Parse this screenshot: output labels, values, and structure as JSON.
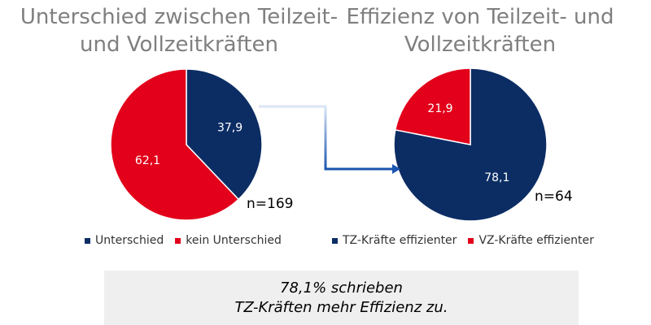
{
  "colors": {
    "navy": "#0c2d64",
    "red": "#e2001a",
    "title_gray": "#7f7f7f",
    "callout_bg": "#efefef"
  },
  "chart_data": [
    {
      "type": "pie",
      "title": "Unterschied zwischen Teilzeit- und Vollzeitkräften",
      "n_label": "n=169",
      "categories": [
        "Unterschied",
        "kein Unterschied"
      ],
      "values": [
        37.9,
        62.1
      ],
      "value_labels": [
        "37,9",
        "62,1"
      ],
      "colors": [
        "#0c2d64",
        "#e2001a"
      ],
      "legend": "bottom"
    },
    {
      "type": "pie",
      "title": "Effizienz von Teilzeit- und Vollzeitkräften",
      "n_label": "n=64",
      "categories": [
        "TZ-Kräfte effizienter",
        "VZ-Kräfte effizienter"
      ],
      "values": [
        78.1,
        21.9
      ],
      "value_labels": [
        "78,1",
        "21,9"
      ],
      "colors": [
        "#0c2d64",
        "#e2001a"
      ],
      "legend": "bottom"
    }
  ],
  "callout": {
    "line1": "78,1% schrieben",
    "line2": "TZ-Kräften mehr Effizienz zu."
  }
}
